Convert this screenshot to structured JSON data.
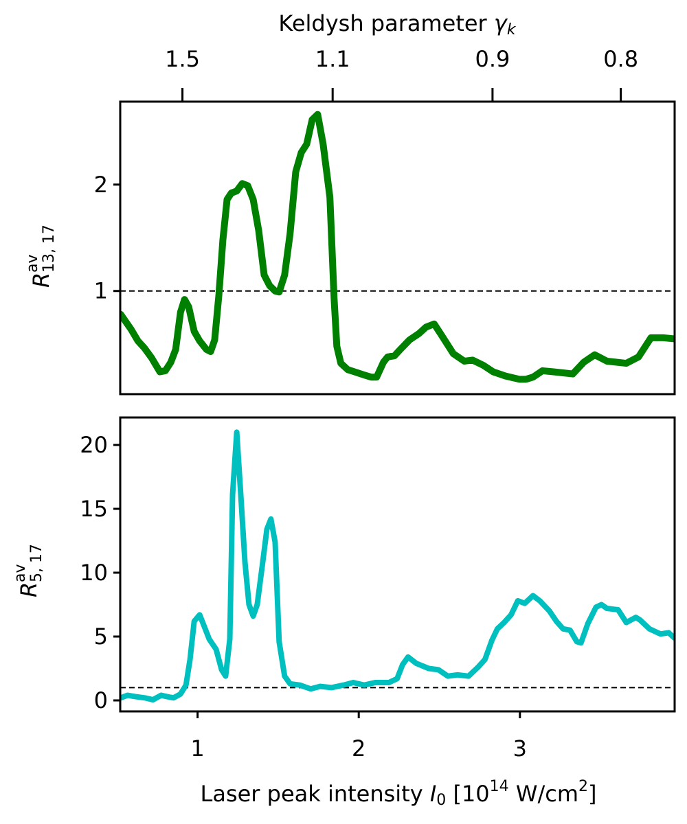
{
  "chart_data": [
    {
      "type": "line",
      "x2label": [
        "Keldysh parameter ",
        "γ",
        "k"
      ],
      "ylabel": [
        "R",
        "av",
        "13, 17"
      ],
      "xlim": [
        0.52,
        3.96
      ],
      "ylim": [
        0.03,
        2.78
      ],
      "yticks": [
        1,
        2
      ],
      "x2ticks": [
        {
          "value": 0.906,
          "label": "1.5"
        },
        {
          "value": 1.838,
          "label": "1.1"
        },
        {
          "value": 2.83,
          "label": "0.9"
        },
        {
          "value": 3.626,
          "label": "0.8"
        }
      ],
      "hline": 1,
      "series": [
        {
          "color": "#008000",
          "x": [
            0.523,
            0.587,
            0.63,
            0.672,
            0.715,
            0.766,
            0.8,
            0.834,
            0.864,
            0.894,
            0.919,
            0.945,
            0.979,
            1.013,
            1.055,
            1.081,
            1.106,
            1.132,
            1.157,
            1.183,
            1.209,
            1.243,
            1.277,
            1.311,
            1.345,
            1.379,
            1.413,
            1.447,
            1.481,
            1.506,
            1.54,
            1.574,
            1.609,
            1.643,
            1.677,
            1.711,
            1.745,
            1.779,
            1.821,
            1.847,
            1.864,
            1.889,
            1.932,
            1.974,
            2.034,
            2.077,
            2.111,
            2.153,
            2.179,
            2.221,
            2.264,
            2.315,
            2.374,
            2.417,
            2.468,
            2.511,
            2.587,
            2.655,
            2.706,
            2.774,
            2.834,
            2.911,
            2.996,
            3.038,
            3.081,
            3.14,
            3.209,
            3.268,
            3.328,
            3.396,
            3.464,
            3.54,
            3.66,
            3.736,
            3.813,
            3.889,
            3.957
          ],
          "values": [
            0.78,
            0.64,
            0.53,
            0.46,
            0.37,
            0.24,
            0.25,
            0.33,
            0.45,
            0.8,
            0.92,
            0.85,
            0.62,
            0.53,
            0.45,
            0.43,
            0.54,
            0.96,
            1.48,
            1.86,
            1.92,
            1.94,
            2.01,
            1.99,
            1.86,
            1.57,
            1.15,
            1.05,
            1.0,
            0.99,
            1.15,
            1.54,
            2.12,
            2.3,
            2.38,
            2.61,
            2.66,
            2.38,
            1.88,
            0.93,
            0.48,
            0.32,
            0.26,
            0.24,
            0.21,
            0.19,
            0.19,
            0.33,
            0.38,
            0.39,
            0.46,
            0.54,
            0.6,
            0.66,
            0.69,
            0.59,
            0.41,
            0.34,
            0.35,
            0.3,
            0.24,
            0.2,
            0.17,
            0.17,
            0.19,
            0.25,
            0.24,
            0.23,
            0.22,
            0.33,
            0.4,
            0.34,
            0.32,
            0.38,
            0.56,
            0.56,
            0.55
          ]
        }
      ]
    },
    {
      "type": "line",
      "xlabel": [
        "Laser peak intensity ",
        "I",
        "0",
        " [10",
        "14",
        " W/cm",
        "2",
        "]"
      ],
      "ylabel": [
        "R",
        "av",
        "5, 17"
      ],
      "xlim": [
        0.52,
        3.96
      ],
      "xticks": [
        1,
        2,
        3
      ],
      "ylim": [
        -0.86,
        22.15
      ],
      "yticks": [
        0,
        5,
        10,
        15,
        20
      ],
      "hline": 1,
      "series": [
        {
          "color": "#00bfbf",
          "x": [
            0.523,
            0.566,
            0.613,
            0.672,
            0.723,
            0.774,
            0.809,
            0.851,
            0.894,
            0.928,
            0.953,
            0.979,
            1.013,
            1.038,
            1.072,
            1.115,
            1.149,
            1.174,
            1.2,
            1.217,
            1.243,
            1.268,
            1.294,
            1.319,
            1.345,
            1.37,
            1.404,
            1.43,
            1.455,
            1.481,
            1.506,
            1.54,
            1.574,
            1.634,
            1.702,
            1.762,
            1.83,
            1.906,
            1.966,
            2.034,
            2.102,
            2.187,
            2.238,
            2.272,
            2.306,
            2.357,
            2.434,
            2.494,
            2.553,
            2.613,
            2.681,
            2.74,
            2.783,
            2.826,
            2.86,
            2.902,
            2.945,
            2.987,
            3.03,
            3.081,
            3.123,
            3.183,
            3.226,
            3.268,
            3.311,
            3.353,
            3.379,
            3.421,
            3.472,
            3.506,
            3.54,
            3.609,
            3.66,
            3.719,
            3.745,
            3.804,
            3.872,
            3.923,
            3.957
          ],
          "values": [
            0.2,
            0.4,
            0.3,
            0.2,
            0.05,
            0.4,
            0.3,
            0.2,
            0.5,
            1.2,
            3.2,
            6.2,
            6.7,
            5.9,
            4.8,
            4.0,
            2.4,
            1.9,
            4.8,
            16.1,
            21.0,
            16.1,
            10.8,
            7.5,
            6.6,
            7.5,
            10.8,
            13.4,
            14.2,
            12.4,
            4.6,
            1.9,
            1.3,
            1.2,
            0.9,
            1.1,
            1.0,
            1.2,
            1.4,
            1.2,
            1.4,
            1.4,
            1.7,
            2.8,
            3.4,
            2.9,
            2.5,
            2.4,
            1.9,
            2.0,
            1.9,
            2.6,
            3.2,
            4.7,
            5.6,
            6.1,
            6.7,
            7.8,
            7.6,
            8.2,
            7.8,
            7.0,
            6.2,
            5.6,
            5.5,
            4.6,
            4.5,
            6.0,
            7.3,
            7.5,
            7.2,
            7.1,
            6.1,
            6.5,
            6.3,
            5.6,
            5.2,
            5.3,
            4.9
          ]
        }
      ]
    }
  ]
}
